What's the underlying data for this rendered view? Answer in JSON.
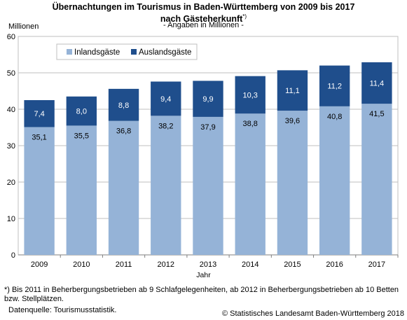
{
  "header": {
    "title_line1": "Übernachtungen im Tourismus in Baden-Württemberg von 2009 bis 2017",
    "title_line2": "nach Gästeherkunft",
    "title_mark": "*)",
    "subtitle": "- Angaben in Millionen -",
    "unit_label": "Millionen"
  },
  "chart_data": {
    "type": "bar",
    "stacked": true,
    "categories": [
      "2009",
      "2010",
      "2011",
      "2012",
      "2013",
      "2014",
      "2015",
      "2016",
      "2017"
    ],
    "series": [
      {
        "name": "Inlandsgäste",
        "values": [
          35.1,
          35.5,
          36.8,
          38.2,
          37.9,
          38.8,
          39.6,
          40.8,
          41.5
        ],
        "color": "#95b3d7",
        "labels": [
          "35,1",
          "35,5",
          "36,8",
          "38,2",
          "37,9",
          "38,8",
          "39,6",
          "40,8",
          "41,5"
        ]
      },
      {
        "name": "Auslandsgäste",
        "values": [
          7.4,
          8.0,
          8.8,
          9.4,
          9.9,
          10.3,
          11.1,
          11.2,
          11.4
        ],
        "color": "#1f4e8c",
        "labels": [
          "7,4",
          "8,0",
          "8,8",
          "9,4",
          "9,9",
          "10,3",
          "11,1",
          "11,2",
          "11,4"
        ]
      }
    ],
    "xlabel": "Jahr",
    "ylim": [
      0,
      60
    ],
    "yticks": [
      0,
      10,
      20,
      30,
      40,
      50,
      60
    ],
    "grid": true,
    "legend": "top-left"
  },
  "footer": {
    "footnote": "*) Bis 2011 in Beherbergungsbetrieben ab 9 Schlafgelegenheiten, ab 2012 in Beherbergungsbetrieben ab 10 Betten bzw. Stellplätzen.",
    "source": "Datenquelle: Tourismusstatistik.",
    "copyright": "© Statistisches Landesamt Baden-Württemberg 2018"
  }
}
